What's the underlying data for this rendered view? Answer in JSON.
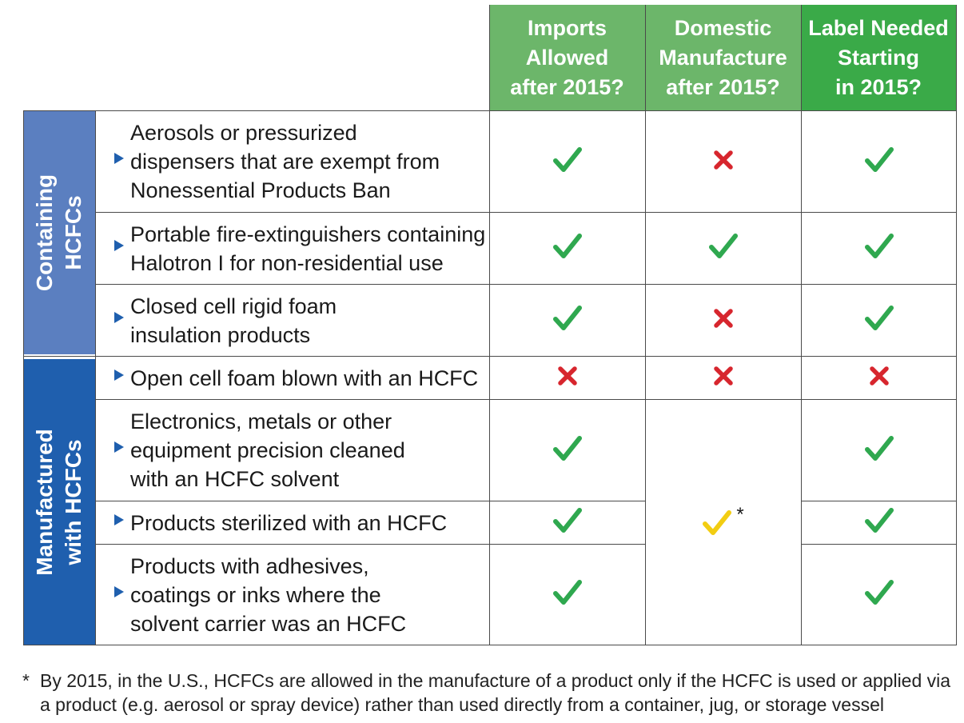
{
  "colors": {
    "header_light_green": "#6cb66a",
    "header_dark_green": "#3aaa48",
    "group_light_blue": "#5b7fc0",
    "group_dark_blue": "#1f5fae",
    "check_green": "#2fa84f",
    "cross_red": "#d7262e",
    "check_yellow": "#f2cd12"
  },
  "columns": [
    {
      "label": "Imports\nAllowed\nafter 2015?"
    },
    {
      "label": "Domestic\nManufacture\nafter 2015?"
    },
    {
      "label": "Label Needed\nStarting\nin 2015?"
    }
  ],
  "groups": [
    {
      "label": "Containing\nHCFCs"
    },
    {
      "label": "Manufactured\nwith HCFCs"
    }
  ],
  "rows": [
    {
      "label": "Aerosols or pressurized\ndispensers that are exempt from\nNonessential Products Ban",
      "imports": "check",
      "domestic": "cross",
      "label_needed": "check"
    },
    {
      "label": "Portable fire-extinguishers containing\nHalotron I for non-residential use",
      "imports": "check",
      "domestic": "check",
      "label_needed": "check"
    },
    {
      "label": "Closed cell rigid foam\ninsulation products",
      "imports": "check",
      "domestic": "cross",
      "label_needed": "check"
    },
    {
      "label": "Open cell foam blown with an HCFC",
      "imports": "cross",
      "domestic": "cross",
      "label_needed": "cross"
    },
    {
      "label": "Electronics, metals or other\nequipment precision cleaned\nwith an HCFC solvent",
      "imports": "check",
      "domestic": "conditional",
      "label_needed": "check"
    },
    {
      "label": "Products sterilized with an HCFC",
      "imports": "check",
      "domestic": "conditional",
      "label_needed": "check"
    },
    {
      "label": "Products with adhesives,\ncoatings or inks where the\nsolvent carrier was an HCFC",
      "imports": "check",
      "domestic": "conditional",
      "label_needed": "check"
    }
  ],
  "merged_cell": {
    "asterisk": "*"
  },
  "footnote": {
    "marker": "*",
    "text": "By 2015, in the U.S., HCFCs are allowed in the manufacture of a product only if the HCFC is used or applied via\na product (e.g. aerosol or spray device) rather than used directly from a container, jug, or storage vessel"
  }
}
